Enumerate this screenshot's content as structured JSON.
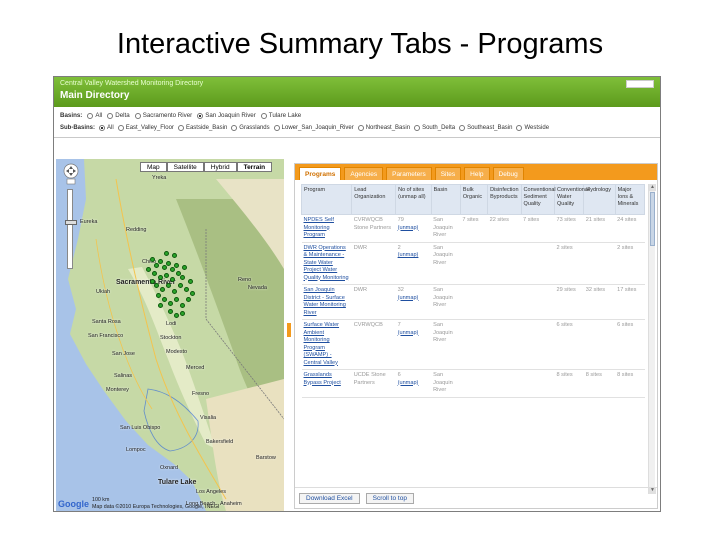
{
  "slide": {
    "title": "Interactive Summary Tabs - Programs"
  },
  "app": {
    "supertitle": "Central Valley Watershed Monitoring Directory",
    "title": "Main Directory"
  },
  "basins": {
    "label": "Basins:",
    "options": [
      "All",
      "Delta",
      "Sacramento River",
      "San Joaquin River",
      "Tulare Lake"
    ],
    "selected_index": 3
  },
  "subbasins": {
    "label": "Sub-Basins:",
    "options": [
      "All",
      "East_Valley_Floor",
      "Eastside_Basin",
      "Grasslands",
      "Lower_San_Joaquin_River",
      "Northeast_Basin",
      "South_Delta",
      "Southeast_Basin",
      "Westside"
    ],
    "selected_index": 0
  },
  "map": {
    "buttons": [
      "Map",
      "Satellite",
      "Hybrid",
      "Terrain"
    ],
    "active_button_index": 3,
    "labels": {
      "sacramento_river": "Sacramento River",
      "tulare_lake": "Tulare Lake",
      "nevada": "Nevada",
      "reno": "Reno",
      "san_francisco": "San Francisco",
      "santa_rosa": "Santa Rosa",
      "fresno": "Fresno",
      "bakersfield": "Bakersfield",
      "los_angeles": "Los Angeles",
      "long_beach": "Long Beach",
      "anaheim": "Anaheim",
      "stockton": "Stockton",
      "visalia": "Visalia",
      "salinas": "Salinas",
      "redding": "Redding",
      "chico": "Chico",
      "eureka": "Eureka",
      "merced": "Merced",
      "modesto": "Modesto",
      "san_jose": "San Jose",
      "lompoc": "Lompoc",
      "oxnard": "Oxnard",
      "ukiah": "Ukiah",
      "yreka": "Yreka",
      "lodi": "Lodi",
      "barstow": "Barstow",
      "eugene_label": "Yreka",
      "monterey": "Monterey",
      "san_luis_obispo": "San Luis Obispo"
    },
    "google": "Google",
    "scale": "100 km",
    "credit": "Map data ©2010 Europa Technologies, Google, INEGI"
  },
  "tabs": [
    "Programs",
    "Agencies",
    "Parameters",
    "Sites",
    "Help",
    "Debug"
  ],
  "active_tab_index": 0,
  "table": {
    "headers": [
      "Program",
      "Lead Organization",
      "No of sites (unmap all)",
      "Basin",
      "Bulk Organic",
      "Disinfection Byproducts",
      "Conventional Sediment Quality",
      "Conventional Water Quality",
      "Hydrology",
      "Major Ions & Minerals"
    ],
    "rows": [
      {
        "program": "NPDES Self Monitoring Program",
        "org": "CVRWQCB Stone Partners",
        "sites": "79",
        "unmap": "(unmap)",
        "basin": "San Joaquin River",
        "bulk": "7 sites",
        "dbp": "22 sites",
        "sed": "7 sites",
        "water": "73 sites",
        "hydro": "21 sites",
        "ions": "24 sites"
      },
      {
        "program": "DWR Operations & Maintenance - State Water Project Water Quality Monitoring",
        "org": "DWR",
        "sites": "2",
        "unmap": "(unmap)",
        "basin": "San Joaquin River",
        "bulk": "",
        "dbp": "",
        "sed": "",
        "water": "2 sites",
        "hydro": "",
        "ions": "2 sites"
      },
      {
        "program": "San Joaquin District - Surface Water Monitoring River",
        "org": "DWR",
        "sites": "32",
        "unmap": "(unmap)",
        "basin": "San Joaquin River",
        "bulk": "",
        "dbp": "",
        "sed": "",
        "water": "29 sites",
        "hydro": "32 sites",
        "ions": "17 sites"
      },
      {
        "program": "Surface Water Ambient Monitoring Program (SWAMP) - Central Valley",
        "org": "CVRWQCB",
        "sites": "7",
        "unmap": "(unmap)",
        "basin": "San Joaquin River",
        "bulk": "",
        "dbp": "",
        "sed": "",
        "water": "6 sites",
        "hydro": "",
        "ions": "6 sites"
      },
      {
        "program": "Grasslands Bypass Project",
        "org": "UCDE Stone Partners",
        "sites": "6",
        "unmap": "(unmap)",
        "basin": "San Joaquin River",
        "bulk": "",
        "dbp": "",
        "sed": "",
        "water": "8 sites",
        "hydro": "8 sites",
        "ions": "8 sites"
      }
    ]
  },
  "buttons": {
    "download": "Download Excel",
    "scroll_top": "Scroll to top"
  },
  "colors": {
    "header_green": "#5c9a1c",
    "tab_orange": "#f39a1d",
    "link_blue": "#1f4fa0",
    "marker_green": "#2aa42a"
  }
}
